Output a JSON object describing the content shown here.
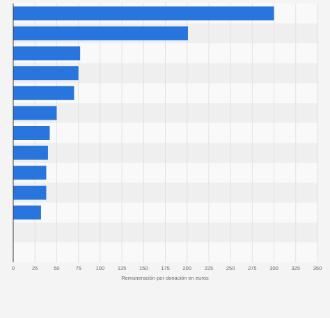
{
  "chart_data": {
    "type": "bar",
    "orientation": "horizontal",
    "categories": [
      "",
      "",
      "",
      "",
      "",
      "",
      "",
      "",
      "",
      "",
      "",
      "",
      ""
    ],
    "values": [
      300,
      201,
      77,
      75,
      70,
      50,
      42,
      40,
      38,
      38,
      32,
      null,
      null
    ],
    "xlabel": "Remuneración por donación en euros",
    "ylabel": "",
    "xlim": [
      0,
      350
    ],
    "xticks": [
      0,
      25,
      50,
      75,
      100,
      125,
      150,
      175,
      200,
      225,
      250,
      275,
      300,
      325,
      350
    ],
    "grid": true,
    "legend": "none",
    "colors": {
      "bar": "#2876dd",
      "background": "#f4f4f4",
      "band_light": "#f9f9f9",
      "band_dark": "#efefef",
      "gridline": "#e2e2e2",
      "axis_line": "#3c3c3c",
      "tick_text": "#666666"
    }
  }
}
